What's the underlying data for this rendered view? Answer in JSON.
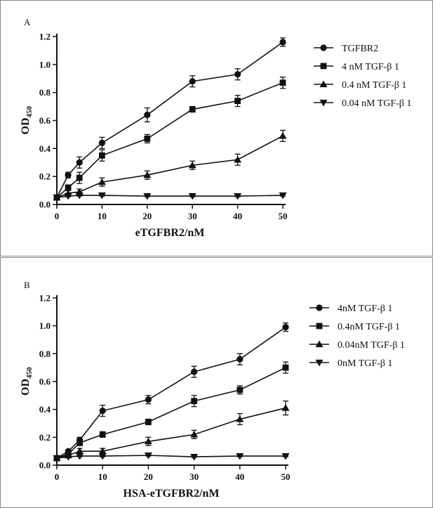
{
  "chart_data": [
    {
      "type": "line",
      "panel_label": "A",
      "xlabel": "eTGFBR2/nM",
      "ylabel_main": "OD",
      "ylabel_sub": "450",
      "x": [
        0,
        2.5,
        5,
        10,
        20,
        30,
        40,
        50
      ],
      "xlim": [
        0,
        50
      ],
      "ylim": [
        0,
        1.2
      ],
      "xticks": [
        0,
        10,
        20,
        30,
        40,
        50
      ],
      "yticks": [
        "0.0",
        "0.2",
        "0.4",
        "0.6",
        "0.8",
        "1.0",
        "1.2"
      ],
      "grid": false,
      "legend_position": "right",
      "series": [
        {
          "name": "TGFBR2",
          "marker": "circle",
          "values": [
            0.05,
            0.21,
            0.3,
            0.44,
            0.64,
            0.88,
            0.93,
            1.16
          ],
          "errors": [
            0.01,
            0.02,
            0.04,
            0.04,
            0.05,
            0.04,
            0.04,
            0.03
          ]
        },
        {
          "name": "4 nM TGF-β 1",
          "marker": "square",
          "values": [
            0.05,
            0.12,
            0.19,
            0.35,
            0.47,
            0.68,
            0.74,
            0.87
          ],
          "errors": [
            0.01,
            0.02,
            0.04,
            0.04,
            0.03,
            0.02,
            0.04,
            0.04
          ]
        },
        {
          "name": "0.4 nM TGF-β 1",
          "marker": "triangle-up",
          "values": [
            0.05,
            0.08,
            0.09,
            0.16,
            0.21,
            0.28,
            0.32,
            0.49
          ],
          "errors": [
            0.01,
            0.02,
            0.02,
            0.03,
            0.03,
            0.03,
            0.04,
            0.04
          ]
        },
        {
          "name": "0.04 nM TGF-β 1",
          "marker": "triangle-down",
          "values": [
            0.05,
            0.06,
            0.065,
            0.065,
            0.06,
            0.06,
            0.06,
            0.065
          ],
          "errors": [
            0.005,
            0.005,
            0.005,
            0.005,
            0.005,
            0.005,
            0.005,
            0.005
          ]
        }
      ]
    },
    {
      "type": "line",
      "panel_label": "B",
      "xlabel": "HSA-eTGFBR2/nM",
      "ylabel_main": "OD",
      "ylabel_sub": "450",
      "x": [
        0,
        2.5,
        5,
        10,
        20,
        30,
        40,
        50
      ],
      "xlim": [
        0,
        50
      ],
      "ylim": [
        0,
        1.2
      ],
      "xticks": [
        0,
        10,
        20,
        30,
        40,
        50
      ],
      "yticks": [
        "0.0",
        "0.2",
        "0.4",
        "0.6",
        "0.8",
        "1.0",
        "1.2"
      ],
      "grid": false,
      "legend_position": "right",
      "series": [
        {
          "name": "4nM TGF-β 1",
          "marker": "circle",
          "values": [
            0.05,
            0.1,
            0.18,
            0.39,
            0.47,
            0.67,
            0.76,
            0.99
          ],
          "errors": [
            0.01,
            0.01,
            0.02,
            0.04,
            0.03,
            0.04,
            0.04,
            0.03
          ]
        },
        {
          "name": "0.4nM TGF-β 1",
          "marker": "square",
          "values": [
            0.05,
            0.08,
            0.16,
            0.22,
            0.31,
            0.46,
            0.54,
            0.7
          ],
          "errors": [
            0.01,
            0.01,
            0.02,
            0.02,
            0.02,
            0.04,
            0.03,
            0.04
          ]
        },
        {
          "name": "0.04nM TGF-β 1",
          "marker": "triangle-up",
          "values": [
            0.05,
            0.07,
            0.1,
            0.1,
            0.17,
            0.22,
            0.33,
            0.41
          ],
          "errors": [
            0.01,
            0.01,
            0.02,
            0.02,
            0.03,
            0.03,
            0.04,
            0.05
          ]
        },
        {
          "name": "0nM TGF-β 1",
          "marker": "triangle-down",
          "values": [
            0.05,
            0.06,
            0.065,
            0.065,
            0.07,
            0.06,
            0.065,
            0.065
          ],
          "errors": [
            0.005,
            0.005,
            0.005,
            0.005,
            0.005,
            0.005,
            0.005,
            0.005
          ]
        }
      ]
    }
  ]
}
